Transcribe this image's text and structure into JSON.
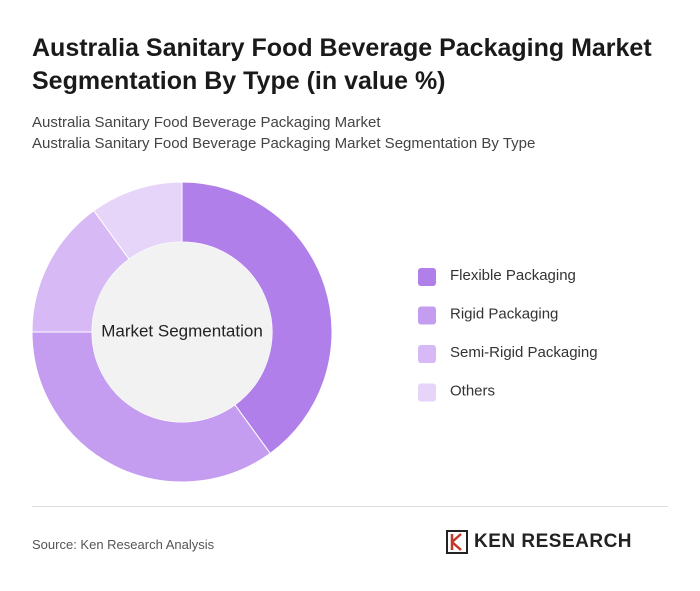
{
  "chart_data": {
    "type": "donut",
    "title": "Australia Sanitary Food Beverage Packaging Market Segmentation By Type (in value %)",
    "subtitle": [
      "Australia Sanitary Food Beverage Packaging Market",
      "Australia Sanitary Food Beverage Packaging Market Segmentation By Type"
    ],
    "center_label": "Market Segmentation",
    "categories": [
      "Flexible Packaging",
      "Rigid Packaging",
      "Semi-Rigid Packaging",
      "Others"
    ],
    "values": [
      40,
      35,
      15,
      10
    ],
    "colors": [
      "#b07fea",
      "#c49cf0",
      "#d6b9f5",
      "#e6d5f8"
    ]
  },
  "footer": {
    "source": "Source: Ken Research Analysis",
    "logo": "KEN RESEARCH"
  }
}
